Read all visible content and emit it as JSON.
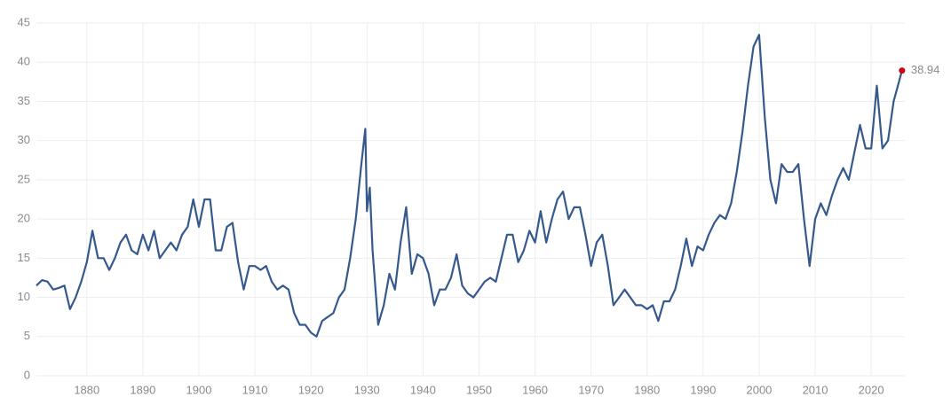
{
  "chart_data": {
    "type": "line",
    "xlim": [
      1871,
      2026
    ],
    "ylim": [
      0,
      45
    ],
    "xticks": [
      1880,
      1890,
      1900,
      1910,
      1920,
      1930,
      1940,
      1950,
      1960,
      1970,
      1980,
      1990,
      2000,
      2010,
      2020
    ],
    "yticks": [
      0,
      5,
      10,
      15,
      20,
      25,
      30,
      35,
      40,
      45
    ],
    "grid": true,
    "x": [
      1871,
      1872,
      1873,
      1874,
      1875,
      1876,
      1877,
      1878,
      1879,
      1880,
      1881,
      1882,
      1883,
      1884,
      1885,
      1886,
      1887,
      1888,
      1889,
      1890,
      1891,
      1892,
      1893,
      1894,
      1895,
      1896,
      1897,
      1898,
      1899,
      1900,
      1901,
      1902,
      1903,
      1904,
      1905,
      1906,
      1907,
      1908,
      1909,
      1910,
      1911,
      1912,
      1913,
      1914,
      1915,
      1916,
      1917,
      1918,
      1919,
      1920,
      1921,
      1922,
      1923,
      1924,
      1925,
      1926,
      1927,
      1928,
      1929,
      1929.7,
      1930,
      1930.5,
      1931,
      1932,
      1933,
      1934,
      1935,
      1936,
      1937,
      1938,
      1939,
      1940,
      1941,
      1942,
      1943,
      1944,
      1945,
      1946,
      1947,
      1948,
      1949,
      1950,
      1951,
      1952,
      1953,
      1954,
      1955,
      1956,
      1957,
      1958,
      1959,
      1960,
      1961,
      1962,
      1963,
      1964,
      1965,
      1966,
      1967,
      1968,
      1969,
      1970,
      1971,
      1972,
      1973,
      1974,
      1975,
      1976,
      1977,
      1978,
      1979,
      1980,
      1981,
      1982,
      1983,
      1984,
      1985,
      1986,
      1987,
      1988,
      1989,
      1990,
      1991,
      1992,
      1993,
      1994,
      1995,
      1996,
      1997,
      1998,
      1999,
      2000,
      2001,
      2002,
      2003,
      2004,
      2005,
      2006,
      2007,
      2008,
      2009,
      2010,
      2011,
      2012,
      2013,
      2014,
      2015,
      2016,
      2017,
      2018,
      2019,
      2020,
      2021,
      2022,
      2023,
      2024,
      2025.5
    ],
    "series": [
      {
        "color": "#35598c",
        "values": [
          11.5,
          12.2,
          12,
          11,
          11.2,
          11.5,
          8.5,
          10,
          12,
          14.5,
          18.5,
          15,
          15,
          13.5,
          15,
          17,
          18,
          16,
          15.5,
          18,
          16,
          18.5,
          15,
          16,
          17,
          16,
          18,
          19,
          22.5,
          19,
          22.5,
          22.5,
          16,
          16,
          19,
          19.5,
          14.5,
          11,
          14,
          14,
          13.5,
          14,
          12,
          11,
          11.5,
          11,
          8,
          6.5,
          6.5,
          5.5,
          5,
          7,
          7.5,
          8,
          10,
          11,
          15,
          20,
          27,
          31.5,
          21,
          24,
          16,
          6.5,
          9,
          13,
          11,
          17,
          21.5,
          13,
          15.5,
          15,
          13,
          9,
          11,
          11,
          12.5,
          15.5,
          11.5,
          10.5,
          10,
          11,
          12,
          12.5,
          12,
          15,
          18,
          18,
          14.5,
          16,
          18.5,
          17,
          21,
          17,
          20,
          22.5,
          23.5,
          20,
          21.5,
          21.5,
          18,
          14,
          17,
          18,
          14,
          9,
          10,
          11,
          10,
          9,
          9,
          8.5,
          9,
          7,
          9.5,
          9.5,
          11,
          14,
          17.5,
          14,
          16.5,
          16,
          18,
          19.5,
          20.5,
          20,
          22,
          26,
          31,
          37,
          42,
          43.5,
          33,
          25,
          22,
          27,
          26,
          26,
          27,
          20,
          14,
          20,
          22,
          20.5,
          23,
          25,
          26.5,
          25,
          28.5,
          32,
          29,
          29,
          37,
          29,
          30,
          35,
          38.94
        ]
      }
    ]
  }
}
